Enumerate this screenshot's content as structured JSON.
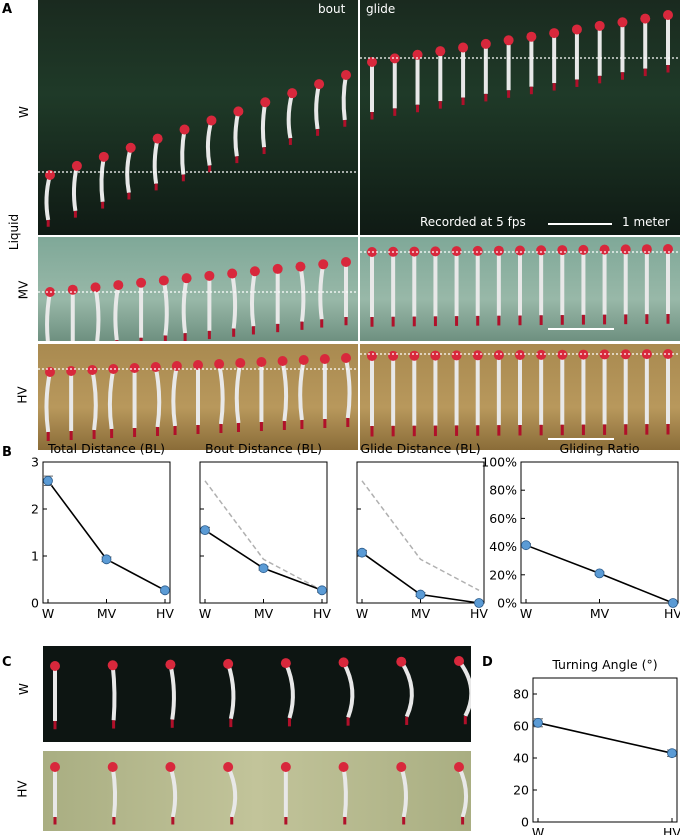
{
  "panels": {
    "A": "A",
    "B": "B",
    "C": "C",
    "D": "D"
  },
  "panelA": {
    "group_label": "Liquid",
    "rows": [
      "W",
      "MV",
      "HV"
    ],
    "bout_label": "bout",
    "glide_label": "glide",
    "recorded_text": "Recorded at 5 fps",
    "scale_text": "1 meter"
  },
  "panelC": {
    "rows": [
      "W",
      "HV"
    ]
  },
  "colors": {
    "marker": "#5b9bd5",
    "line": "#000000",
    "reference": "#b0b0b0",
    "larva": "#d8283c"
  },
  "chart_data": [
    {
      "type": "line",
      "title": "Total Distance (BL)",
      "categories": [
        "W",
        "MV",
        "HV"
      ],
      "values": [
        2.6,
        0.93,
        0.27
      ],
      "errors": [
        0.1,
        0.05,
        0.04
      ],
      "ylim": [
        0,
        3
      ],
      "yticks": [
        "0",
        "1",
        "2",
        "3"
      ],
      "ytick_values": [
        0,
        1,
        2,
        3
      ],
      "reference": null
    },
    {
      "type": "line",
      "title": "Bout Distance (BL)",
      "categories": [
        "W",
        "MV",
        "HV"
      ],
      "values": [
        1.55,
        0.74,
        0.27
      ],
      "errors": [
        0.06,
        0.04,
        0.04
      ],
      "ylim": [
        0,
        3
      ],
      "yticks": [],
      "ytick_values": [
        0,
        1,
        2,
        3
      ],
      "reference": [
        2.6,
        0.93,
        0.27
      ]
    },
    {
      "type": "line",
      "title": "Glide Distance (BL)",
      "categories": [
        "W",
        "MV",
        "HV"
      ],
      "values": [
        1.07,
        0.18,
        0.0
      ],
      "errors": [
        0.05,
        0.04,
        0.01
      ],
      "ylim": [
        0,
        3
      ],
      "yticks": [],
      "ytick_values": [
        0,
        1,
        2,
        3
      ],
      "reference": [
        2.6,
        0.93,
        0.27
      ]
    },
    {
      "type": "line",
      "title": "Gliding Ratio",
      "categories": [
        "W",
        "MV",
        "HV"
      ],
      "values": [
        41,
        21,
        0
      ],
      "errors": [
        1,
        1,
        0.5
      ],
      "ylim": [
        0,
        100
      ],
      "yticks": [
        "0%",
        "20%",
        "40%",
        "60%",
        "80%",
        "100%"
      ],
      "ytick_values": [
        0,
        20,
        40,
        60,
        80,
        100
      ],
      "reference": null
    },
    {
      "type": "line",
      "title": "Turning Angle (°)",
      "categories": [
        "W",
        "HV"
      ],
      "values": [
        62,
        43
      ],
      "errors": [
        2.5,
        2
      ],
      "ylim": [
        0,
        90
      ],
      "yticks": [
        "0",
        "20",
        "40",
        "60",
        "80"
      ],
      "ytick_values": [
        0,
        20,
        40,
        60,
        80
      ],
      "reference": null
    }
  ]
}
